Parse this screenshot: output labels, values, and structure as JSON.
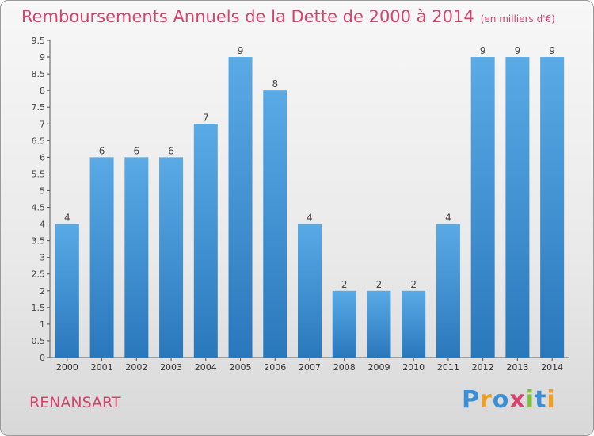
{
  "header": {
    "title": "Remboursements Annuels de la Dette de 2000 à 2014",
    "subtitle": "(en milliers d'€)"
  },
  "footer": {
    "town": "RENANSART",
    "logo_letters": [
      "P",
      "r",
      "o",
      "x",
      "i",
      "t",
      "i"
    ],
    "logo_colors": [
      "#3a8fd6",
      "#f0a020",
      "#3a8fd6",
      "#d8426d",
      "#7cbf3a",
      "#3a8fd6",
      "#f0a020"
    ]
  },
  "colors": {
    "accent": "#d8426d",
    "bar_light": "#5aaae6",
    "bar_dark": "#2a78bc"
  },
  "chart_data": {
    "type": "bar",
    "title": "Remboursements Annuels de la Dette de 2000 à 2014",
    "subtitle": "(en milliers d'€)",
    "xlabel": "",
    "ylabel": "",
    "categories": [
      "2000",
      "2001",
      "2002",
      "2003",
      "2004",
      "2005",
      "2006",
      "2007",
      "2008",
      "2009",
      "2010",
      "2011",
      "2012",
      "2013",
      "2014"
    ],
    "values": [
      4,
      6,
      6,
      6,
      7,
      9,
      8,
      4,
      2,
      2,
      2,
      4,
      9,
      9,
      9
    ],
    "ylim": [
      0,
      9.5
    ],
    "yticks": [
      0,
      0.5,
      1,
      1.5,
      2,
      2.5,
      3,
      3.5,
      4,
      4.5,
      5,
      5.5,
      6,
      6.5,
      7,
      7.5,
      8,
      8.5,
      9,
      9.5
    ],
    "ytick_labels": [
      "0",
      "0.5",
      "1",
      "1.5",
      "2",
      "2.5",
      "3",
      "3.5",
      "4",
      "4.5",
      "5",
      "5.5",
      "6",
      "6.5",
      "7",
      "7.5",
      "8",
      "8.5",
      "9",
      "9.5"
    ],
    "data_labels": [
      "4",
      "6",
      "6",
      "6",
      "7",
      "9",
      "8",
      "4",
      "2",
      "2",
      "2",
      "4",
      "9",
      "9",
      "9"
    ],
    "grid": false,
    "legend": "none"
  }
}
